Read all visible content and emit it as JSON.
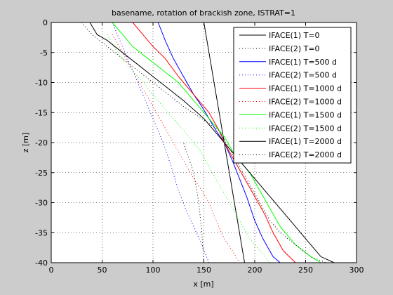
{
  "chart_data": {
    "type": "line",
    "title": "basename, rotation of brackish zone, ISTRAT=1",
    "xlabel": "x [m]",
    "ylabel": "z [m]",
    "xlim": [
      0,
      300
    ],
    "ylim": [
      -40,
      0
    ],
    "xticks": [
      "0",
      "50",
      "100",
      "150",
      "200",
      "250",
      "300"
    ],
    "yticks": [
      "0",
      "-5",
      "-10",
      "-15",
      "-20",
      "-25",
      "-30",
      "-35",
      "-40"
    ],
    "grid": true,
    "legend_position": "top-right",
    "series": [
      {
        "name": "IFACE(1) T=0",
        "color": "#000000",
        "style": "solid",
        "points": [
          [
            150,
            0
          ],
          [
            155,
            -5
          ],
          [
            160,
            -10
          ],
          [
            165,
            -15
          ],
          [
            170,
            -20
          ],
          [
            175,
            -25
          ],
          [
            180,
            -30
          ],
          [
            185,
            -35
          ],
          [
            190,
            -40
          ]
        ]
      },
      {
        "name": "IFACE(2) T=0",
        "color": "#000000",
        "style": "dotted",
        "points": [
          [
            150,
            -40
          ],
          [
            148,
            -35
          ],
          [
            145,
            -30
          ],
          [
            140,
            -25
          ],
          [
            130,
            -20
          ]
        ]
      },
      {
        "name": "IFACE(1) T=500 d",
        "color": "#0000ff",
        "style": "solid",
        "points": [
          [
            105,
            0
          ],
          [
            112,
            -3
          ],
          [
            120,
            -6
          ],
          [
            130,
            -9
          ],
          [
            140,
            -12
          ],
          [
            148,
            -14
          ],
          [
            155,
            -16
          ],
          [
            162,
            -18
          ],
          [
            170,
            -20
          ],
          [
            178,
            -23
          ],
          [
            185,
            -26
          ],
          [
            192,
            -29
          ],
          [
            200,
            -33
          ],
          [
            208,
            -36
          ],
          [
            218,
            -39
          ],
          [
            225,
            -40
          ]
        ]
      },
      {
        "name": "IFACE(2) T=500 d",
        "color": "#0000ff",
        "style": "dotted",
        "points": [
          [
            60,
            0
          ],
          [
            70,
            -4
          ],
          [
            80,
            -8
          ],
          [
            90,
            -12
          ],
          [
            100,
            -16
          ],
          [
            110,
            -20
          ],
          [
            118,
            -24
          ],
          [
            125,
            -28
          ],
          [
            132,
            -31
          ],
          [
            140,
            -34
          ],
          [
            148,
            -37
          ],
          [
            155,
            -40
          ]
        ]
      },
      {
        "name": "IFACE(1) T=1000 d",
        "color": "#ff0000",
        "style": "solid",
        "points": [
          [
            80,
            0
          ],
          [
            90,
            -2
          ],
          [
            100,
            -4
          ],
          [
            112,
            -6
          ],
          [
            125,
            -9
          ],
          [
            140,
            -12
          ],
          [
            155,
            -15
          ],
          [
            165,
            -18
          ],
          [
            170,
            -20
          ],
          [
            180,
            -23
          ],
          [
            190,
            -26
          ],
          [
            200,
            -29
          ],
          [
            210,
            -32
          ],
          [
            218,
            -35
          ],
          [
            228,
            -38
          ],
          [
            240,
            -40
          ]
        ]
      },
      {
        "name": "IFACE(2) T=1000 d",
        "color": "#ff0000",
        "style": "dotted",
        "points": [
          [
            60,
            -2
          ],
          [
            70,
            -5
          ],
          [
            80,
            -8
          ],
          [
            90,
            -11
          ],
          [
            100,
            -14
          ],
          [
            110,
            -17
          ],
          [
            120,
            -20
          ],
          [
            130,
            -23
          ],
          [
            140,
            -26
          ],
          [
            148,
            -28
          ],
          [
            155,
            -30
          ],
          [
            162,
            -33
          ],
          [
            170,
            -36
          ],
          [
            178,
            -38
          ],
          [
            185,
            -40
          ]
        ]
      },
      {
        "name": "IFACE(1) T=1500 d",
        "color": "#00ff00",
        "style": "solid",
        "points": [
          [
            60,
            0
          ],
          [
            70,
            -2
          ],
          [
            80,
            -4
          ],
          [
            95,
            -6
          ],
          [
            110,
            -8
          ],
          [
            125,
            -10
          ],
          [
            140,
            -13
          ],
          [
            155,
            -16
          ],
          [
            170,
            -19
          ],
          [
            180,
            -22
          ],
          [
            195,
            -25
          ],
          [
            205,
            -28
          ],
          [
            215,
            -31
          ],
          [
            225,
            -34
          ],
          [
            240,
            -37
          ],
          [
            255,
            -39
          ],
          [
            265,
            -40
          ]
        ]
      },
      {
        "name": "IFACE(2) T=1500 d",
        "color": "#00ff00",
        "style": "dotted",
        "points": [
          [
            55,
            -2
          ],
          [
            65,
            -5
          ],
          [
            75,
            -7
          ],
          [
            85,
            -9
          ],
          [
            95,
            -11
          ],
          [
            105,
            -13
          ],
          [
            115,
            -15
          ],
          [
            125,
            -17
          ],
          [
            135,
            -19
          ],
          [
            145,
            -21
          ],
          [
            155,
            -24
          ],
          [
            165,
            -27
          ],
          [
            175,
            -30
          ],
          [
            185,
            -33
          ],
          [
            195,
            -36
          ],
          [
            205,
            -38
          ],
          [
            215,
            -40
          ]
        ]
      },
      {
        "name": "IFACE(1) T=2000 d",
        "color": "#000000",
        "style": "solid",
        "points": [
          [
            38,
            0
          ],
          [
            45,
            -2
          ],
          [
            55,
            -3
          ],
          [
            70,
            -5
          ],
          [
            85,
            -7
          ],
          [
            100,
            -9
          ],
          [
            115,
            -11
          ],
          [
            130,
            -13
          ],
          [
            150,
            -16
          ],
          [
            165,
            -19
          ],
          [
            180,
            -22
          ],
          [
            195,
            -25
          ],
          [
            210,
            -28
          ],
          [
            225,
            -31
          ],
          [
            235,
            -33
          ],
          [
            245,
            -35
          ],
          [
            255,
            -37
          ],
          [
            265,
            -39
          ],
          [
            278,
            -40
          ]
        ]
      },
      {
        "name": "IFACE(2) T=2000 d",
        "color": "#000000",
        "style": "dotted",
        "points": [
          [
            30,
            0
          ],
          [
            40,
            -2
          ],
          [
            55,
            -4
          ],
          [
            70,
            -6
          ],
          [
            85,
            -8
          ],
          [
            100,
            -10
          ],
          [
            115,
            -12
          ],
          [
            130,
            -14
          ],
          [
            148,
            -16
          ],
          [
            165,
            -18
          ],
          [
            175,
            -21
          ],
          [
            185,
            -24
          ],
          [
            195,
            -27
          ],
          [
            205,
            -30
          ],
          [
            215,
            -33
          ],
          [
            225,
            -35
          ],
          [
            240,
            -37
          ],
          [
            255,
            -39
          ],
          [
            270,
            -40
          ]
        ]
      }
    ]
  }
}
